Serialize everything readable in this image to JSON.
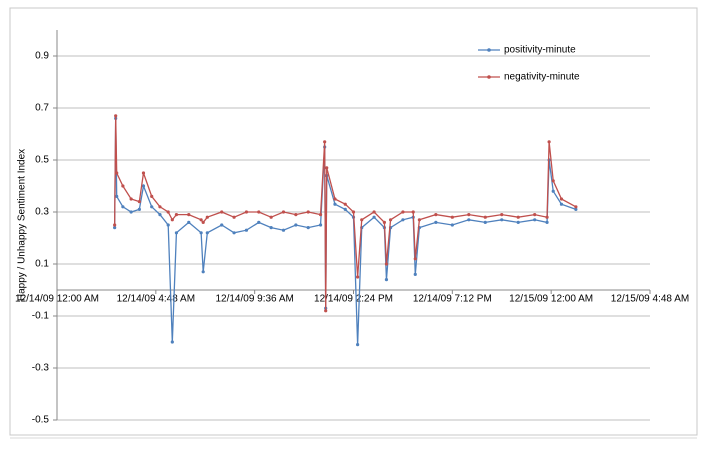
{
  "chart_data": {
    "type": "line",
    "y_label": "Happy / Unhappy  Sentiment Index",
    "x": [
      "2009-12-14T02:48",
      "2009-12-14T02:51",
      "2009-12-14T02:54",
      "2009-12-14T03:12",
      "2009-12-14T03:36",
      "2009-12-14T04:00",
      "2009-12-14T04:12",
      "2009-12-14T04:36",
      "2009-12-14T05:00",
      "2009-12-14T05:24",
      "2009-12-14T05:36",
      "2009-12-14T05:48",
      "2009-12-14T06:24",
      "2009-12-14T07:00",
      "2009-12-14T07:06",
      "2009-12-14T07:18",
      "2009-12-14T08:00",
      "2009-12-14T08:36",
      "2009-12-14T09:12",
      "2009-12-14T09:48",
      "2009-12-14T10:24",
      "2009-12-14T11:00",
      "2009-12-14T11:36",
      "2009-12-14T12:12",
      "2009-12-14T12:48",
      "2009-12-14T13:00",
      "2009-12-14T13:03",
      "2009-12-14T13:06",
      "2009-12-14T13:30",
      "2009-12-14T14:00",
      "2009-12-14T14:24",
      "2009-12-14T14:36",
      "2009-12-14T14:48",
      "2009-12-14T15:24",
      "2009-12-14T15:54",
      "2009-12-14T16:00",
      "2009-12-14T16:12",
      "2009-12-14T16:48",
      "2009-12-14T17:18",
      "2009-12-14T17:24",
      "2009-12-14T17:36",
      "2009-12-14T18:24",
      "2009-12-14T19:12",
      "2009-12-14T20:00",
      "2009-12-14T20:48",
      "2009-12-14T21:36",
      "2009-12-14T22:24",
      "2009-12-14T23:12",
      "2009-12-14T23:48",
      "2009-12-14T23:54",
      "2009-12-15T00:06",
      "2009-12-15T00:30",
      "2009-12-15T01:12"
    ],
    "series": [
      {
        "name": "positivity-minute",
        "color": "#4f81bd",
        "values": [
          0.24,
          0.66,
          0.36,
          0.32,
          0.3,
          0.31,
          0.4,
          0.32,
          0.29,
          0.25,
          -0.2,
          0.22,
          0.26,
          0.22,
          0.07,
          0.22,
          0.25,
          0.22,
          0.23,
          0.26,
          0.24,
          0.23,
          0.25,
          0.24,
          0.25,
          0.55,
          -0.07,
          0.44,
          0.33,
          0.31,
          0.28,
          -0.21,
          0.24,
          0.28,
          0.24,
          0.04,
          0.24,
          0.27,
          0.28,
          0.06,
          0.24,
          0.26,
          0.25,
          0.27,
          0.26,
          0.27,
          0.26,
          0.27,
          0.26,
          0.5,
          0.38,
          0.33,
          0.31
        ]
      },
      {
        "name": "negativity-minute",
        "color": "#c0504d",
        "values": [
          0.25,
          0.67,
          0.45,
          0.4,
          0.35,
          0.34,
          0.45,
          0.36,
          0.32,
          0.3,
          0.27,
          0.29,
          0.29,
          0.27,
          0.26,
          0.28,
          0.3,
          0.28,
          0.3,
          0.3,
          0.28,
          0.3,
          0.29,
          0.3,
          0.29,
          0.57,
          -0.08,
          0.47,
          0.35,
          0.33,
          0.3,
          0.05,
          0.27,
          0.3,
          0.26,
          0.1,
          0.27,
          0.3,
          0.3,
          0.12,
          0.27,
          0.29,
          0.28,
          0.29,
          0.28,
          0.29,
          0.28,
          0.29,
          0.28,
          0.57,
          0.42,
          0.35,
          0.32
        ]
      }
    ],
    "xlim": [
      "2009-12-14T00:00",
      "2009-12-15T04:48"
    ],
    "xticks": [
      {
        "value": "2009-12-14T00:00",
        "label": "12/14/09 12:00 AM"
      },
      {
        "value": "2009-12-14T04:48",
        "label": "12/14/09 4:48 AM"
      },
      {
        "value": "2009-12-14T09:36",
        "label": "12/14/09 9:36 AM"
      },
      {
        "value": "2009-12-14T14:24",
        "label": "12/14/09 2:24 PM"
      },
      {
        "value": "2009-12-14T19:12",
        "label": "12/14/09 7:12 PM"
      },
      {
        "value": "2009-12-15T00:00",
        "label": "12/15/09 12:00 AM"
      },
      {
        "value": "2009-12-15T04:48",
        "label": "12/15/09 4:48 AM"
      }
    ],
    "ylim": [
      -0.5,
      1.0
    ],
    "yticks": [
      -0.5,
      -0.3,
      -0.1,
      0.1,
      0.3,
      0.5,
      0.7,
      0.9
    ],
    "grid": true,
    "legend": "top-right"
  }
}
